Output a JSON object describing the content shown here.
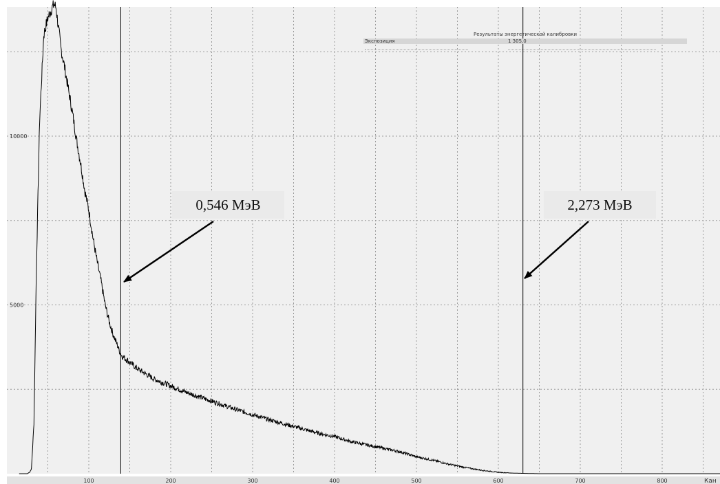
{
  "chart_data": {
    "type": "line",
    "title": "",
    "xlabel": "Кан",
    "ylabel": "",
    "xlim": [
      0,
      900
    ],
    "ylim": [
      0,
      14100
    ],
    "x_ticks": [
      100,
      200,
      300,
      400,
      500,
      600,
      700,
      800
    ],
    "y_ticks": [
      5000,
      10000
    ],
    "grid": true,
    "series": [
      {
        "x": [
          15,
          20,
          25,
          28,
          30,
          33,
          36,
          40,
          45,
          50,
          55,
          58,
          60,
          63,
          66,
          70,
          75,
          80,
          85,
          90,
          95,
          100,
          105,
          110,
          115,
          120,
          125,
          130,
          135,
          138,
          140,
          150,
          160,
          170,
          180,
          200,
          220,
          250,
          280,
          300,
          320,
          350,
          380,
          400,
          420,
          450,
          480,
          500,
          520,
          540,
          560,
          580,
          600,
          620,
          650,
          700,
          750,
          800,
          850,
          900
        ],
        "y": [
          0,
          0,
          0,
          50,
          150,
          1500,
          6000,
          10500,
          13000,
          13500,
          13800,
          13900,
          13800,
          13200,
          12600,
          12100,
          11400,
          10700,
          9900,
          9200,
          8400,
          7800,
          7000,
          6300,
          5700,
          5000,
          4500,
          4100,
          3800,
          3600,
          3500,
          3300,
          3100,
          2950,
          2800,
          2600,
          2400,
          2150,
          1900,
          1750,
          1600,
          1400,
          1200,
          1100,
          950,
          800,
          650,
          500,
          400,
          280,
          180,
          100,
          40,
          15,
          0,
          0,
          0,
          0,
          0,
          0
        ]
      }
    ],
    "markers": [
      {
        "x": 139,
        "label": "0,546 МэВ"
      },
      {
        "x": 630,
        "label": "2,273 МэВ"
      }
    ],
    "info_box": {
      "title": "Результаты энергетической калибровки",
      "label": "Экспозиция",
      "value": "1 305,0"
    }
  }
}
